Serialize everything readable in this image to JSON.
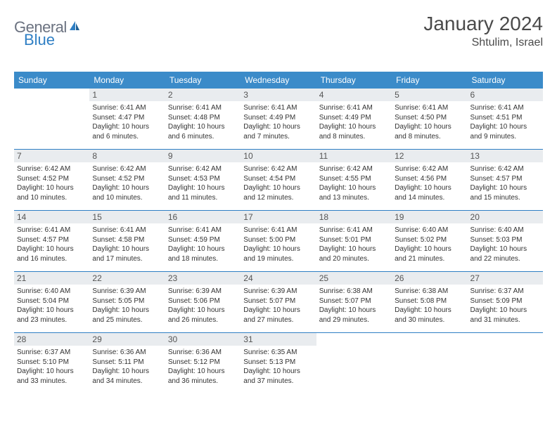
{
  "logo": {
    "word1": "General",
    "word2": "Blue"
  },
  "header": {
    "title": "January 2024",
    "location": "Shtulim, Israel"
  },
  "colors": {
    "header_bar": "#3b8bc9",
    "week_divider": "#2f7fc4",
    "daynum_bg": "#e9ecef",
    "text": "#333333",
    "logo_gray": "#6b7280",
    "logo_blue": "#2f7fc4"
  },
  "weekdays": [
    "Sunday",
    "Monday",
    "Tuesday",
    "Wednesday",
    "Thursday",
    "Friday",
    "Saturday"
  ],
  "weeks": [
    [
      {
        "day": "",
        "sunrise": "",
        "sunset": "",
        "daylight": ""
      },
      {
        "day": "1",
        "sunrise": "Sunrise: 6:41 AM",
        "sunset": "Sunset: 4:47 PM",
        "daylight": "Daylight: 10 hours and 6 minutes."
      },
      {
        "day": "2",
        "sunrise": "Sunrise: 6:41 AM",
        "sunset": "Sunset: 4:48 PM",
        "daylight": "Daylight: 10 hours and 6 minutes."
      },
      {
        "day": "3",
        "sunrise": "Sunrise: 6:41 AM",
        "sunset": "Sunset: 4:49 PM",
        "daylight": "Daylight: 10 hours and 7 minutes."
      },
      {
        "day": "4",
        "sunrise": "Sunrise: 6:41 AM",
        "sunset": "Sunset: 4:49 PM",
        "daylight": "Daylight: 10 hours and 8 minutes."
      },
      {
        "day": "5",
        "sunrise": "Sunrise: 6:41 AM",
        "sunset": "Sunset: 4:50 PM",
        "daylight": "Daylight: 10 hours and 8 minutes."
      },
      {
        "day": "6",
        "sunrise": "Sunrise: 6:41 AM",
        "sunset": "Sunset: 4:51 PM",
        "daylight": "Daylight: 10 hours and 9 minutes."
      }
    ],
    [
      {
        "day": "7",
        "sunrise": "Sunrise: 6:42 AM",
        "sunset": "Sunset: 4:52 PM",
        "daylight": "Daylight: 10 hours and 10 minutes."
      },
      {
        "day": "8",
        "sunrise": "Sunrise: 6:42 AM",
        "sunset": "Sunset: 4:52 PM",
        "daylight": "Daylight: 10 hours and 10 minutes."
      },
      {
        "day": "9",
        "sunrise": "Sunrise: 6:42 AM",
        "sunset": "Sunset: 4:53 PM",
        "daylight": "Daylight: 10 hours and 11 minutes."
      },
      {
        "day": "10",
        "sunrise": "Sunrise: 6:42 AM",
        "sunset": "Sunset: 4:54 PM",
        "daylight": "Daylight: 10 hours and 12 minutes."
      },
      {
        "day": "11",
        "sunrise": "Sunrise: 6:42 AM",
        "sunset": "Sunset: 4:55 PM",
        "daylight": "Daylight: 10 hours and 13 minutes."
      },
      {
        "day": "12",
        "sunrise": "Sunrise: 6:42 AM",
        "sunset": "Sunset: 4:56 PM",
        "daylight": "Daylight: 10 hours and 14 minutes."
      },
      {
        "day": "13",
        "sunrise": "Sunrise: 6:42 AM",
        "sunset": "Sunset: 4:57 PM",
        "daylight": "Daylight: 10 hours and 15 minutes."
      }
    ],
    [
      {
        "day": "14",
        "sunrise": "Sunrise: 6:41 AM",
        "sunset": "Sunset: 4:57 PM",
        "daylight": "Daylight: 10 hours and 16 minutes."
      },
      {
        "day": "15",
        "sunrise": "Sunrise: 6:41 AM",
        "sunset": "Sunset: 4:58 PM",
        "daylight": "Daylight: 10 hours and 17 minutes."
      },
      {
        "day": "16",
        "sunrise": "Sunrise: 6:41 AM",
        "sunset": "Sunset: 4:59 PM",
        "daylight": "Daylight: 10 hours and 18 minutes."
      },
      {
        "day": "17",
        "sunrise": "Sunrise: 6:41 AM",
        "sunset": "Sunset: 5:00 PM",
        "daylight": "Daylight: 10 hours and 19 minutes."
      },
      {
        "day": "18",
        "sunrise": "Sunrise: 6:41 AM",
        "sunset": "Sunset: 5:01 PM",
        "daylight": "Daylight: 10 hours and 20 minutes."
      },
      {
        "day": "19",
        "sunrise": "Sunrise: 6:40 AM",
        "sunset": "Sunset: 5:02 PM",
        "daylight": "Daylight: 10 hours and 21 minutes."
      },
      {
        "day": "20",
        "sunrise": "Sunrise: 6:40 AM",
        "sunset": "Sunset: 5:03 PM",
        "daylight": "Daylight: 10 hours and 22 minutes."
      }
    ],
    [
      {
        "day": "21",
        "sunrise": "Sunrise: 6:40 AM",
        "sunset": "Sunset: 5:04 PM",
        "daylight": "Daylight: 10 hours and 23 minutes."
      },
      {
        "day": "22",
        "sunrise": "Sunrise: 6:39 AM",
        "sunset": "Sunset: 5:05 PM",
        "daylight": "Daylight: 10 hours and 25 minutes."
      },
      {
        "day": "23",
        "sunrise": "Sunrise: 6:39 AM",
        "sunset": "Sunset: 5:06 PM",
        "daylight": "Daylight: 10 hours and 26 minutes."
      },
      {
        "day": "24",
        "sunrise": "Sunrise: 6:39 AM",
        "sunset": "Sunset: 5:07 PM",
        "daylight": "Daylight: 10 hours and 27 minutes."
      },
      {
        "day": "25",
        "sunrise": "Sunrise: 6:38 AM",
        "sunset": "Sunset: 5:07 PM",
        "daylight": "Daylight: 10 hours and 29 minutes."
      },
      {
        "day": "26",
        "sunrise": "Sunrise: 6:38 AM",
        "sunset": "Sunset: 5:08 PM",
        "daylight": "Daylight: 10 hours and 30 minutes."
      },
      {
        "day": "27",
        "sunrise": "Sunrise: 6:37 AM",
        "sunset": "Sunset: 5:09 PM",
        "daylight": "Daylight: 10 hours and 31 minutes."
      }
    ],
    [
      {
        "day": "28",
        "sunrise": "Sunrise: 6:37 AM",
        "sunset": "Sunset: 5:10 PM",
        "daylight": "Daylight: 10 hours and 33 minutes."
      },
      {
        "day": "29",
        "sunrise": "Sunrise: 6:36 AM",
        "sunset": "Sunset: 5:11 PM",
        "daylight": "Daylight: 10 hours and 34 minutes."
      },
      {
        "day": "30",
        "sunrise": "Sunrise: 6:36 AM",
        "sunset": "Sunset: 5:12 PM",
        "daylight": "Daylight: 10 hours and 36 minutes."
      },
      {
        "day": "31",
        "sunrise": "Sunrise: 6:35 AM",
        "sunset": "Sunset: 5:13 PM",
        "daylight": "Daylight: 10 hours and 37 minutes."
      },
      {
        "day": "",
        "sunrise": "",
        "sunset": "",
        "daylight": ""
      },
      {
        "day": "",
        "sunrise": "",
        "sunset": "",
        "daylight": ""
      },
      {
        "day": "",
        "sunrise": "",
        "sunset": "",
        "daylight": ""
      }
    ]
  ]
}
